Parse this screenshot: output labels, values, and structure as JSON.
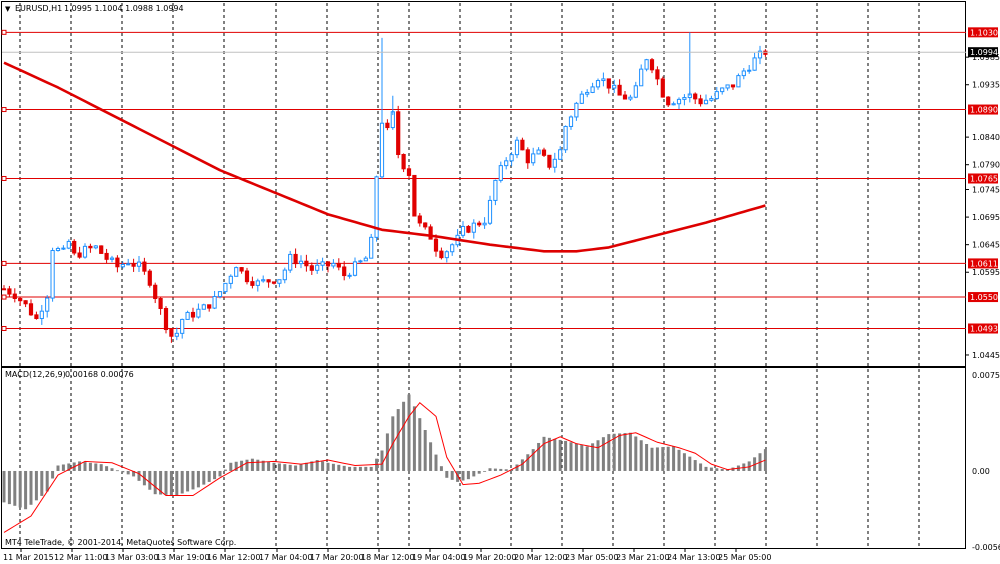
{
  "header": {
    "symbol": "EURUSD,H1",
    "ohlc": "1.0995 1.1004 1.0988 1.0994"
  },
  "indicator": {
    "name": "MACD(12,26,9)",
    "values": "0.00168 0.00076"
  },
  "copyright": "MT4 TeleTrade, © 2001-2014, MetaQuotes Software Corp.",
  "colors": {
    "background": "#ffffff",
    "candle_up": "#1e90ff",
    "candle_down": "#e00000",
    "ma_line": "#dd0000",
    "level_line": "#e00000",
    "grid": "#000000",
    "histogram": "#808080",
    "signal": "#ff0000",
    "current_price_box": "#000000"
  },
  "chart_data": [
    {
      "type": "candlestick",
      "title": "EURUSD,H1",
      "ylim": [
        1.0425,
        1.1085
      ],
      "x_ticks": [
        "11 Mar 2015",
        "12 Mar 11:00",
        "13 Mar 03:00",
        "13 Mar 19:00",
        "16 Mar 12:00",
        "17 Mar 04:00",
        "17 Mar 20:00",
        "18 Mar 12:00",
        "19 Mar 04:00",
        "19 Mar 20:00",
        "20 Mar 12:00",
        "23 Mar 05:00",
        "23 Mar 21:00",
        "24 Mar 13:00",
        "25 Mar 05:00"
      ],
      "y_ticks": [
        "1.0985",
        "1.0935",
        "1.0840",
        "1.0790",
        "1.0745",
        "1.0695",
        "1.0645",
        "1.0595",
        "1.0445"
      ],
      "price_levels": [
        "1.1030",
        "1.0890",
        "1.0765",
        "1.0611",
        "1.0550",
        "1.0493"
      ],
      "current_price": "1.0994",
      "price_path": [
        [
          0,
          1.0565
        ],
        [
          2,
          1.0555
        ],
        [
          4,
          1.0535
        ],
        [
          6,
          1.051
        ],
        [
          8,
          1.0555
        ],
        [
          9,
          1.064
        ],
        [
          11,
          1.063
        ],
        [
          12,
          1.065
        ],
        [
          13,
          1.0625
        ],
        [
          15,
          1.0635
        ],
        [
          17,
          1.064
        ],
        [
          19,
          1.062
        ],
        [
          21,
          1.0605
        ],
        [
          23,
          1.0615
        ],
        [
          25,
          1.0605
        ],
        [
          27,
          1.058
        ],
        [
          29,
          1.0525
        ],
        [
          30,
          1.05
        ],
        [
          31,
          1.048
        ],
        [
          32,
          1.0485
        ],
        [
          33,
          1.051
        ],
        [
          35,
          1.052
        ],
        [
          37,
          1.053
        ],
        [
          39,
          1.0545
        ],
        [
          41,
          1.0575
        ],
        [
          43,
          1.061
        ],
        [
          44,
          1.0595
        ],
        [
          45,
          1.0585
        ],
        [
          47,
          1.0575
        ],
        [
          49,
          1.058
        ],
        [
          51,
          1.0585
        ],
        [
          52,
          1.06
        ],
        [
          53,
          1.062
        ],
        [
          55,
          1.0615
        ],
        [
          57,
          1.06
        ],
        [
          59,
          1.0605
        ],
        [
          61,
          1.061
        ],
        [
          63,
          1.059
        ],
        [
          65,
          1.0605
        ],
        [
          67,
          1.062
        ],
        [
          68,
          1.065
        ],
        [
          69,
          1.077
        ],
        [
          70,
          1.087
        ],
        [
          71,
          1.085
        ],
        [
          72,
          1.088
        ],
        [
          73,
          1.081
        ],
        [
          74,
          1.079
        ],
        [
          75,
          1.0775
        ],
        [
          76,
          1.07
        ],
        [
          77,
          1.068
        ],
        [
          79,
          1.066
        ],
        [
          80,
          1.064
        ],
        [
          81,
          1.063
        ],
        [
          82,
          1.0635
        ],
        [
          84,
          1.0655
        ],
        [
          85,
          1.067
        ],
        [
          87,
          1.068
        ],
        [
          89,
          1.069
        ],
        [
          90,
          1.072
        ],
        [
          91,
          1.076
        ],
        [
          93,
          1.08
        ],
        [
          95,
          1.083
        ],
        [
          96,
          1.0815
        ],
        [
          97,
          1.08
        ],
        [
          99,
          1.081
        ],
        [
          101,
          1.079
        ],
        [
          103,
          1.0815
        ],
        [
          104,
          1.086
        ],
        [
          106,
          1.09
        ],
        [
          108,
          1.093
        ],
        [
          110,
          1.095
        ],
        [
          112,
          1.0935
        ],
        [
          114,
          1.0915
        ],
        [
          116,
          1.091
        ],
        [
          117,
          1.0925
        ],
        [
          118,
          1.096
        ],
        [
          119,
          1.0985
        ],
        [
          120,
          1.097
        ],
        [
          122,
          1.092
        ],
        [
          123,
          1.0905
        ],
        [
          125,
          1.091
        ],
        [
          127,
          1.0915
        ],
        [
          129,
          1.0905
        ],
        [
          131,
          1.091
        ],
        [
          133,
          1.0925
        ],
        [
          135,
          1.0935
        ],
        [
          137,
          1.096
        ],
        [
          139,
          1.098
        ],
        [
          141,
          1.0995
        ]
      ],
      "moving_average": [
        [
          0,
          1.0975
        ],
        [
          10,
          1.093
        ],
        [
          20,
          1.088
        ],
        [
          30,
          1.083
        ],
        [
          40,
          1.078
        ],
        [
          50,
          1.074
        ],
        [
          60,
          1.07
        ],
        [
          70,
          1.0672
        ],
        [
          80,
          1.066
        ],
        [
          90,
          1.0645
        ],
        [
          100,
          1.0633
        ],
        [
          106,
          1.0633
        ],
        [
          112,
          1.064
        ],
        [
          120,
          1.066
        ],
        [
          130,
          1.0685
        ],
        [
          141,
          1.0716
        ]
      ]
    },
    {
      "type": "bar",
      "title": "MACD(12,26,9)",
      "ylim": [
        -0.00564,
        0.00754
      ],
      "y_ticks": [
        "0.00754",
        "0.00",
        "-0.00564"
      ],
      "macd": [
        [
          0,
          -0.0023
        ],
        [
          4,
          -0.0028
        ],
        [
          8,
          -0.0015
        ],
        [
          10,
          0.0004
        ],
        [
          14,
          0.0007
        ],
        [
          18,
          0.0005
        ],
        [
          20,
          0.0002
        ],
        [
          24,
          -0.0004
        ],
        [
          28,
          -0.0017
        ],
        [
          32,
          -0.0018
        ],
        [
          36,
          -0.0012
        ],
        [
          40,
          -0.0004
        ],
        [
          42,
          0.0006
        ],
        [
          46,
          0.0009
        ],
        [
          50,
          0.0006
        ],
        [
          54,
          0.0004
        ],
        [
          58,
          0.0008
        ],
        [
          60,
          0.0006
        ],
        [
          64,
          0.0003
        ],
        [
          68,
          0.0003
        ],
        [
          70,
          0.0015
        ],
        [
          72,
          0.004
        ],
        [
          75,
          0.0056
        ],
        [
          78,
          0.003
        ],
        [
          80,
          0.0012
        ],
        [
          82,
          -0.0005
        ],
        [
          84,
          -0.0008
        ],
        [
          86,
          -0.0006
        ],
        [
          90,
          0.0002
        ],
        [
          94,
          0.0001
        ],
        [
          98,
          0.0016
        ],
        [
          100,
          0.0025
        ],
        [
          104,
          0.0022
        ],
        [
          108,
          0.0018
        ],
        [
          112,
          0.0027
        ],
        [
          116,
          0.0028
        ],
        [
          120,
          0.0017
        ],
        [
          124,
          0.0018
        ],
        [
          128,
          0.0008
        ],
        [
          130,
          0.0003
        ],
        [
          134,
          0.0001
        ],
        [
          138,
          0.0007
        ],
        [
          141,
          0.0016
        ]
      ],
      "signal": [
        [
          0,
          -0.0045
        ],
        [
          5,
          -0.0033
        ],
        [
          10,
          -0.0003
        ],
        [
          15,
          0.0007
        ],
        [
          20,
          0.0006
        ],
        [
          25,
          -0.0002
        ],
        [
          30,
          -0.0018
        ],
        [
          35,
          -0.0018
        ],
        [
          40,
          -0.0005
        ],
        [
          45,
          0.0006
        ],
        [
          50,
          0.0007
        ],
        [
          55,
          0.0005
        ],
        [
          60,
          0.0008
        ],
        [
          65,
          0.0004
        ],
        [
          70,
          0.0005
        ],
        [
          72,
          0.002
        ],
        [
          75,
          0.004
        ],
        [
          77,
          0.005
        ],
        [
          80,
          0.004
        ],
        [
          82,
          0.001
        ],
        [
          85,
          -0.001
        ],
        [
          88,
          -0.0009
        ],
        [
          92,
          -0.0003
        ],
        [
          96,
          0.0005
        ],
        [
          100,
          0.002
        ],
        [
          103,
          0.0025
        ],
        [
          106,
          0.002
        ],
        [
          110,
          0.0017
        ],
        [
          114,
          0.0026
        ],
        [
          117,
          0.0028
        ],
        [
          121,
          0.0021
        ],
        [
          125,
          0.0017
        ],
        [
          128,
          0.0013
        ],
        [
          131,
          0.0005
        ],
        [
          134,
          0.0001
        ],
        [
          138,
          0.0003
        ],
        [
          141,
          0.0008
        ]
      ]
    }
  ]
}
